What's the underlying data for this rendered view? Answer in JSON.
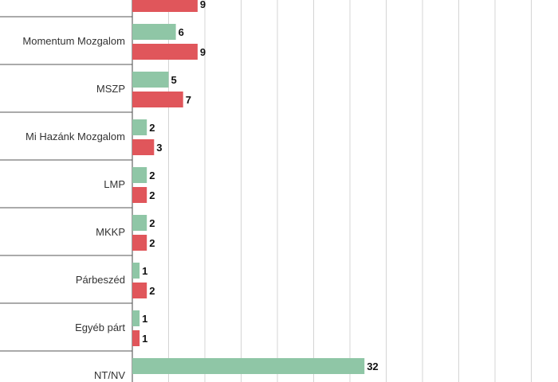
{
  "chart_data": {
    "type": "bar",
    "orientation": "horizontal",
    "categories": [
      "",
      "Momentum Mozgalom",
      "MSZP",
      "Mi Hazánk Mozgalom",
      "LMP",
      "MKKP",
      "Párbeszéd",
      "Egyéb párt",
      "NT/NV"
    ],
    "series": [
      {
        "color": "#8fc6a6",
        "values": [
          null,
          6,
          5,
          2,
          2,
          2,
          1,
          1,
          32
        ]
      },
      {
        "color": "#e0565b",
        "values": [
          9,
          9,
          7,
          3,
          2,
          2,
          2,
          1,
          null
        ]
      }
    ],
    "xlim": [
      0,
      58
    ],
    "grid": true
  }
}
